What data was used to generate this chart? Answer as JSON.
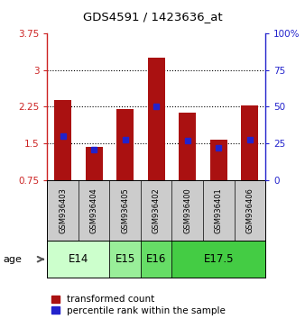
{
  "title": "GDS4591 / 1423636_at",
  "samples": [
    "GSM936403",
    "GSM936404",
    "GSM936405",
    "GSM936402",
    "GSM936400",
    "GSM936401",
    "GSM936406"
  ],
  "transformed_counts": [
    2.38,
    1.43,
    2.2,
    3.25,
    2.13,
    1.57,
    2.27
  ],
  "percentile_ranks": [
    1.65,
    1.37,
    1.58,
    2.25,
    1.55,
    1.4,
    1.58
  ],
  "ylim": [
    0.75,
    3.75
  ],
  "yticks": [
    0.75,
    1.5,
    2.25,
    3.0,
    3.75
  ],
  "ytick_labels": [
    "0.75",
    "1.5",
    "2.25",
    "3",
    "3.75"
  ],
  "y2ticks": [
    0,
    25,
    50,
    75,
    100
  ],
  "y2tick_labels": [
    "0",
    "25",
    "50",
    "75",
    "100%"
  ],
  "bar_color": "#aa1111",
  "marker_color": "#2222cc",
  "age_groups": [
    {
      "label": "E14",
      "samples": [
        0,
        1
      ],
      "color": "#ccffcc"
    },
    {
      "label": "E15",
      "samples": [
        2
      ],
      "color": "#99ee99"
    },
    {
      "label": "E16",
      "samples": [
        3
      ],
      "color": "#66dd66"
    },
    {
      "label": "E17.5",
      "samples": [
        4,
        5,
        6
      ],
      "color": "#44cc44"
    }
  ],
  "legend_red": "transformed count",
  "legend_blue": "percentile rank within the sample",
  "age_label": "age",
  "background_color": "#ffffff",
  "grid_dotted_vals": [
    1.5,
    2.25,
    3.0
  ]
}
